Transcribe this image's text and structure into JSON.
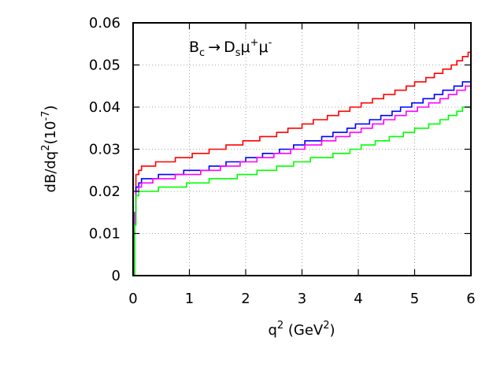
{
  "chart_data": {
    "type": "line",
    "title": "",
    "annotation": {
      "B": "B",
      "c": "c",
      "arrow": "→",
      "D": "D",
      "s": "s",
      "mu1": "μ",
      "plus": "+",
      "mu2": "μ",
      "minus": "-"
    },
    "xlabel": {
      "main": "q",
      "sup": "2",
      "unit_open": " (GeV",
      "unit_sup": "2",
      "unit_close": ")"
    },
    "ylabel": {
      "main": "dB/dq",
      "sup": "2",
      "unit_open": "(10",
      "unit_sup": "-7",
      "unit_close": ")"
    },
    "xlim": [
      0,
      6
    ],
    "ylim": [
      0,
      0.06
    ],
    "xticks": [
      "0",
      "1",
      "2",
      "3",
      "4",
      "5",
      "6"
    ],
    "yticks": [
      "0",
      "0.01",
      "0.02",
      "0.03",
      "0.04",
      "0.05",
      "0.06"
    ],
    "grid": true,
    "step_width": 0.2,
    "series": [
      {
        "color": "#ff0000",
        "values": [
          [
            0.0,
            0.0
          ],
          [
            0.01,
            0.0
          ],
          [
            0.03,
            0.015
          ],
          [
            0.05,
            0.024
          ],
          [
            0.1,
            0.025
          ],
          [
            0.15,
            0.026
          ],
          [
            0.4,
            0.027
          ],
          [
            0.75,
            0.028
          ],
          [
            1.05,
            0.029
          ],
          [
            1.35,
            0.03
          ],
          [
            1.65,
            0.031
          ],
          [
            1.95,
            0.032
          ],
          [
            2.25,
            0.033
          ],
          [
            2.55,
            0.034
          ],
          [
            2.75,
            0.035
          ],
          [
            3.0,
            0.036
          ],
          [
            3.2,
            0.037
          ],
          [
            3.45,
            0.038
          ],
          [
            3.65,
            0.039
          ],
          [
            3.85,
            0.04
          ],
          [
            4.05,
            0.041
          ],
          [
            4.25,
            0.042
          ],
          [
            4.45,
            0.043
          ],
          [
            4.65,
            0.044
          ],
          [
            4.85,
            0.045
          ],
          [
            5.0,
            0.046
          ],
          [
            5.2,
            0.047
          ],
          [
            5.35,
            0.048
          ],
          [
            5.5,
            0.049
          ],
          [
            5.65,
            0.05
          ],
          [
            5.75,
            0.051
          ],
          [
            5.85,
            0.052
          ],
          [
            5.95,
            0.053
          ],
          [
            6.0,
            0.053
          ]
        ]
      },
      {
        "color": "#0000ff",
        "values": [
          [
            0.0,
            0.0
          ],
          [
            0.01,
            0.0
          ],
          [
            0.03,
            0.015
          ],
          [
            0.05,
            0.021
          ],
          [
            0.1,
            0.022
          ],
          [
            0.15,
            0.023
          ],
          [
            0.45,
            0.024
          ],
          [
            0.9,
            0.025
          ],
          [
            1.35,
            0.026
          ],
          [
            1.65,
            0.027
          ],
          [
            2.0,
            0.028
          ],
          [
            2.3,
            0.029
          ],
          [
            2.6,
            0.03
          ],
          [
            2.85,
            0.031
          ],
          [
            3.05,
            0.032
          ],
          [
            3.35,
            0.033
          ],
          [
            3.55,
            0.034
          ],
          [
            3.8,
            0.035
          ],
          [
            3.95,
            0.036
          ],
          [
            4.2,
            0.037
          ],
          [
            4.4,
            0.038
          ],
          [
            4.6,
            0.039
          ],
          [
            4.75,
            0.04
          ],
          [
            4.95,
            0.041
          ],
          [
            5.15,
            0.042
          ],
          [
            5.35,
            0.043
          ],
          [
            5.5,
            0.044
          ],
          [
            5.7,
            0.045
          ],
          [
            5.85,
            0.046
          ],
          [
            6.0,
            0.046
          ]
        ]
      },
      {
        "color": "#ff00ff",
        "values": [
          [
            0.0,
            0.0
          ],
          [
            0.01,
            0.0
          ],
          [
            0.03,
            0.015
          ],
          [
            0.05,
            0.02
          ],
          [
            0.1,
            0.021
          ],
          [
            0.15,
            0.022
          ],
          [
            0.35,
            0.023
          ],
          [
            0.75,
            0.024
          ],
          [
            1.2,
            0.025
          ],
          [
            1.55,
            0.026
          ],
          [
            1.9,
            0.027
          ],
          [
            2.2,
            0.028
          ],
          [
            2.5,
            0.029
          ],
          [
            2.8,
            0.03
          ],
          [
            3.05,
            0.031
          ],
          [
            3.35,
            0.032
          ],
          [
            3.6,
            0.033
          ],
          [
            3.85,
            0.034
          ],
          [
            4.05,
            0.035
          ],
          [
            4.25,
            0.036
          ],
          [
            4.45,
            0.037
          ],
          [
            4.65,
            0.038
          ],
          [
            4.85,
            0.039
          ],
          [
            5.05,
            0.04
          ],
          [
            5.25,
            0.041
          ],
          [
            5.45,
            0.042
          ],
          [
            5.6,
            0.043
          ],
          [
            5.75,
            0.044
          ],
          [
            5.9,
            0.045
          ],
          [
            6.0,
            0.045
          ]
        ]
      },
      {
        "color": "#00ff00",
        "values": [
          [
            0.0,
            0.0
          ],
          [
            0.01,
            0.0
          ],
          [
            0.03,
            0.012
          ],
          [
            0.05,
            0.019
          ],
          [
            0.1,
            0.02
          ],
          [
            0.45,
            0.021
          ],
          [
            0.95,
            0.022
          ],
          [
            1.35,
            0.023
          ],
          [
            1.85,
            0.024
          ],
          [
            2.2,
            0.025
          ],
          [
            2.55,
            0.026
          ],
          [
            2.85,
            0.027
          ],
          [
            3.15,
            0.028
          ],
          [
            3.55,
            0.029
          ],
          [
            3.85,
            0.03
          ],
          [
            4.05,
            0.031
          ],
          [
            4.3,
            0.032
          ],
          [
            4.55,
            0.033
          ],
          [
            4.8,
            0.034
          ],
          [
            5.0,
            0.035
          ],
          [
            5.25,
            0.036
          ],
          [
            5.45,
            0.037
          ],
          [
            5.6,
            0.038
          ],
          [
            5.75,
            0.039
          ],
          [
            5.85,
            0.04
          ],
          [
            6.0,
            0.04
          ]
        ]
      }
    ]
  }
}
